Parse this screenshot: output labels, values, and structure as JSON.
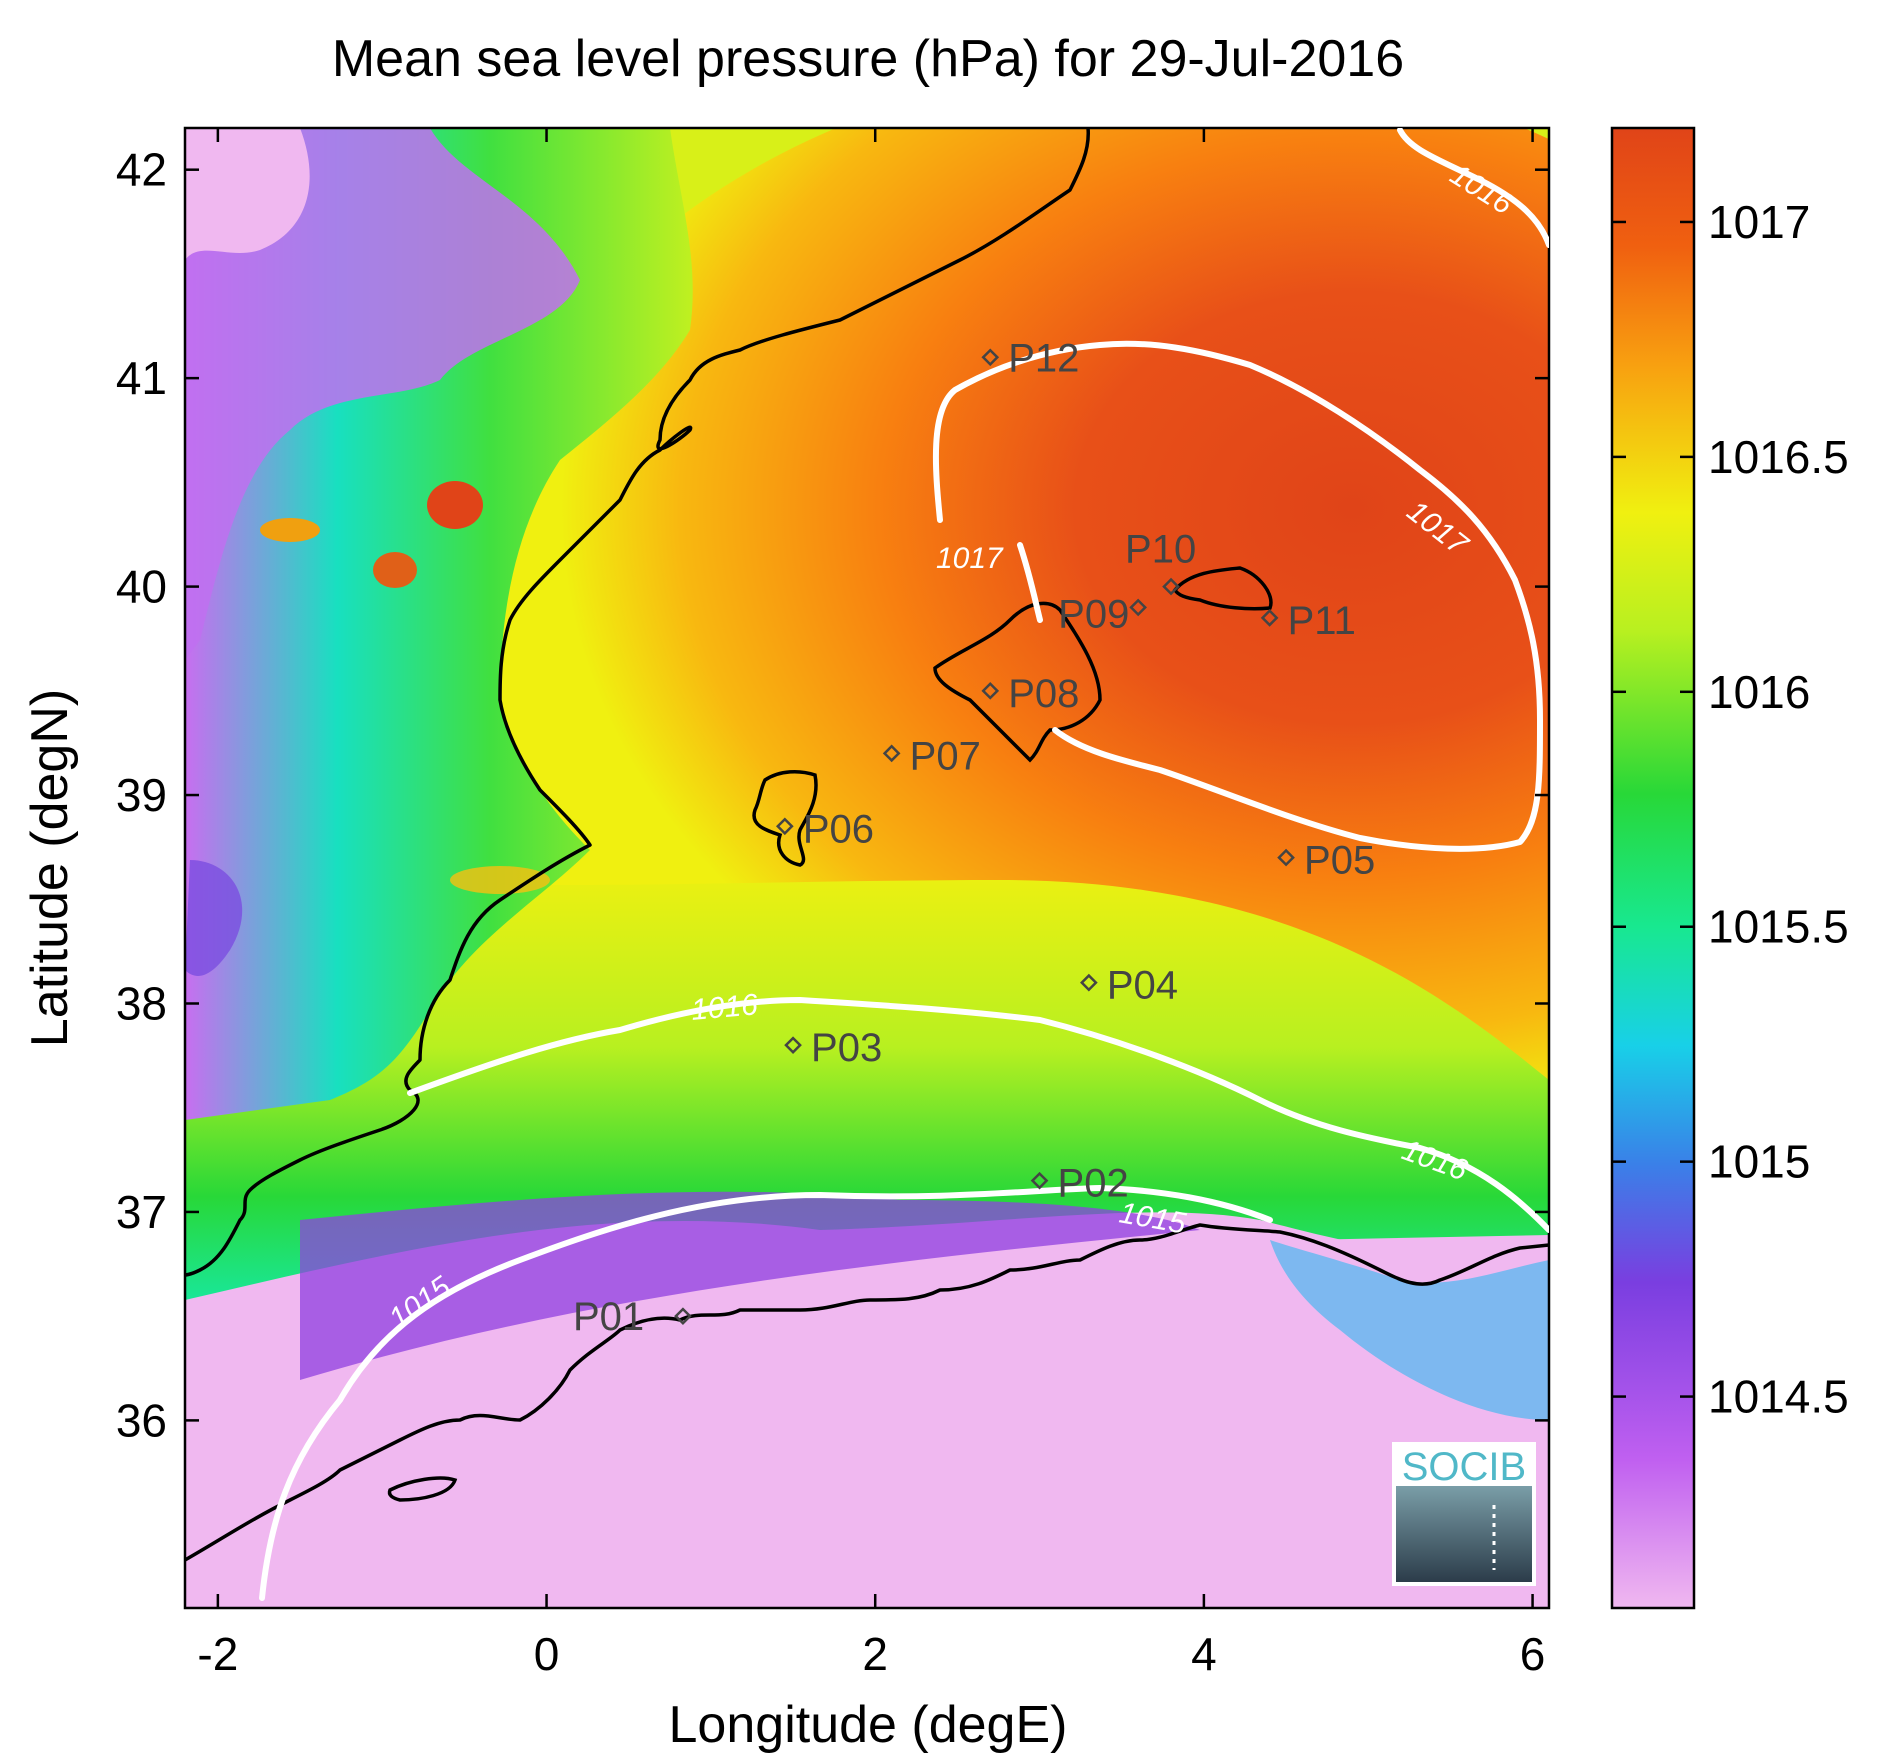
{
  "title": "Mean sea level pressure (hPa) for 29-Jul-2016",
  "xlabel": "Longitude (degE)",
  "ylabel": "Latitude (degN)",
  "x_ticks": [
    "-2",
    "0",
    "2",
    "4",
    "6"
  ],
  "y_ticks": [
    "36",
    "37",
    "38",
    "39",
    "40",
    "41",
    "42"
  ],
  "colorbar_ticks": [
    "1014.5",
    "1015",
    "1015.5",
    "1016",
    "1016.5",
    "1017"
  ],
  "contour_labels": {
    "c1015": "1015",
    "c1016a": "1016",
    "c1016b": "1016",
    "c1016c": "1016",
    "c1017a": "1017",
    "c1017b": "1017"
  },
  "logo": {
    "text": "SOCIB"
  },
  "chart_data": {
    "type": "heatmap",
    "title": "Mean sea level pressure (hPa) for 29-Jul-2016",
    "xlabel": "Longitude (degE)",
    "ylabel": "Latitude (degN)",
    "xlim": [
      -2.2,
      6.1
    ],
    "ylim": [
      35.1,
      42.2
    ],
    "colorbar": {
      "min": 1014.05,
      "max": 1017.2,
      "ticks": [
        1014.5,
        1015,
        1015.5,
        1016,
        1016.5,
        1017
      ]
    },
    "contour_levels": [
      1015,
      1016,
      1017
    ],
    "stations": [
      {
        "name": "P01",
        "lon": 0.83,
        "lat": 36.5
      },
      {
        "name": "P02",
        "lon": 3.0,
        "lat": 37.15
      },
      {
        "name": "P03",
        "lon": 1.5,
        "lat": 37.8
      },
      {
        "name": "P04",
        "lon": 3.3,
        "lat": 38.1
      },
      {
        "name": "P05",
        "lon": 4.5,
        "lat": 38.7
      },
      {
        "name": "P06",
        "lon": 1.45,
        "lat": 38.85
      },
      {
        "name": "P07",
        "lon": 2.1,
        "lat": 39.2
      },
      {
        "name": "P08",
        "lon": 2.7,
        "lat": 39.5
      },
      {
        "name": "P09",
        "lon": 3.6,
        "lat": 39.9
      },
      {
        "name": "P10",
        "lon": 3.8,
        "lat": 40.0
      },
      {
        "name": "P11",
        "lon": 4.4,
        "lat": 39.85
      },
      {
        "name": "P12",
        "lon": 2.7,
        "lat": 41.1
      }
    ]
  },
  "colors": {
    "c_low": "#f0b8f0",
    "c_purple": "#b44ae0",
    "c_violet": "#7a3ee0",
    "c_blue": "#3a80e8",
    "c_cyan": "#18e0d8",
    "c_green": "#28d838",
    "c_yellowgreen": "#b8f020",
    "c_yellow": "#f0f010",
    "c_orange": "#f8a010",
    "c_darkorange": "#f06010",
    "c_red": "#e04418"
  }
}
